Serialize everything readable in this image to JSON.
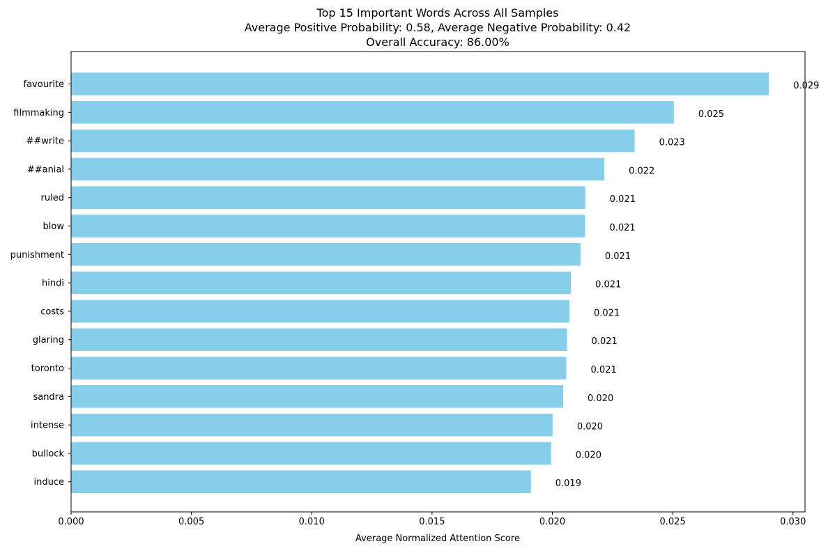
{
  "chart_data": {
    "type": "bar",
    "orientation": "horizontal",
    "title_lines": [
      "Top 15 Important Words Across All Samples",
      "Average Positive Probability: 0.58, Average Negative Probability: 0.42",
      "Overall Accuracy: 86.00%"
    ],
    "xlabel": "Average Normalized Attention Score",
    "ylabel": "",
    "xlim": [
      0,
      0.0305
    ],
    "xticks": [
      0.0,
      0.005,
      0.01,
      0.015,
      0.02,
      0.025,
      0.03
    ],
    "xtick_labels": [
      "0.000",
      "0.005",
      "0.010",
      "0.015",
      "0.020",
      "0.025",
      "0.030"
    ],
    "categories": [
      "favourite",
      "filmmaking",
      "##write",
      "##anial",
      "ruled",
      "blow",
      "punishment",
      "hindi",
      "costs",
      "glaring",
      "toronto",
      "sandra",
      "intense",
      "bullock",
      "induce"
    ],
    "values": [
      0.029,
      0.02505,
      0.02342,
      0.02216,
      0.02137,
      0.02136,
      0.02117,
      0.02077,
      0.02071,
      0.02061,
      0.02058,
      0.02045,
      0.02001,
      0.01995,
      0.01911
    ],
    "value_labels": [
      "0.029",
      "0.025",
      "0.023",
      "0.022",
      "0.021",
      "0.021",
      "0.021",
      "0.021",
      "0.021",
      "0.021",
      "0.021",
      "0.020",
      "0.020",
      "0.020",
      "0.019"
    ],
    "bar_color": "#87ceeb",
    "grid": false,
    "legend": "none"
  }
}
